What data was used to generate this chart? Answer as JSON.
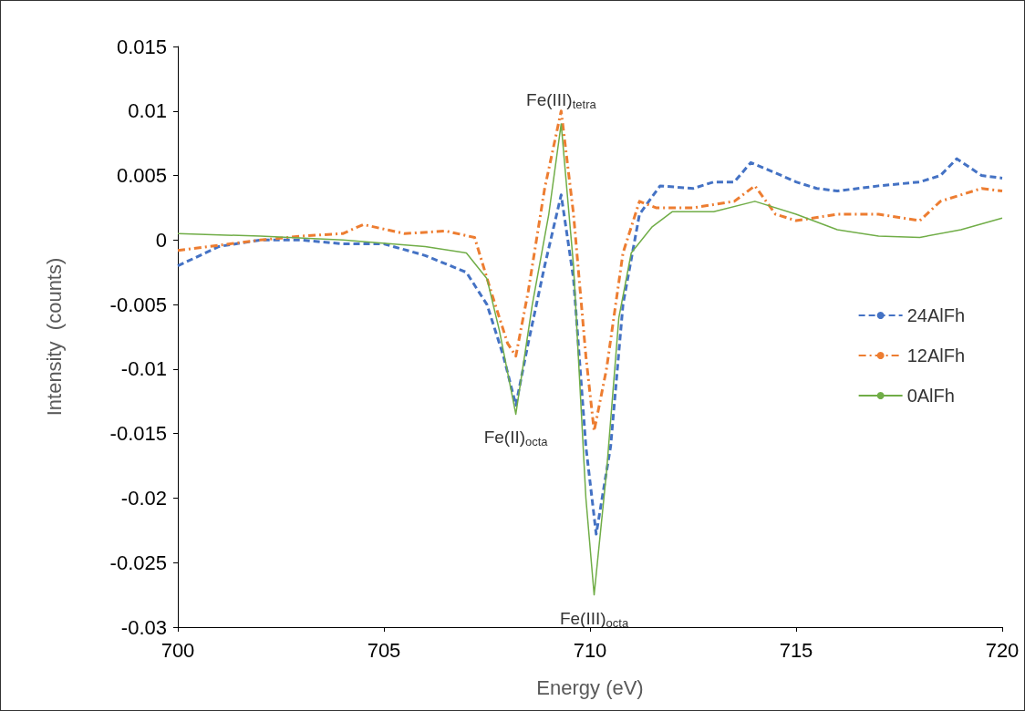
{
  "chart_data": {
    "type": "line",
    "xlabel": "Energy (eV)",
    "ylabel": "Intensity  (counts)",
    "xlim": [
      700,
      720
    ],
    "xticks": [
      700,
      705,
      710,
      715,
      720
    ],
    "ylim": [
      -0.03,
      0.015
    ],
    "yticks": [
      -0.03,
      -0.025,
      -0.02,
      -0.015,
      -0.01,
      -0.005,
      0,
      0.005,
      0.01,
      0.015
    ],
    "grid": false,
    "legend": "right",
    "marker": "none",
    "annotations": [
      {
        "text": "Fe(III)$_{tetra}$",
        "x": 709.3,
        "y": 0.009
      },
      {
        "text": "Fe(II)$_{octa}$",
        "x": 708.2,
        "y": -0.0135
      },
      {
        "text": "Fe(III)$_{octa}$",
        "x": 710.1,
        "y": -0.0275
      }
    ],
    "series": [
      {
        "name": "24AlFh",
        "color": "#4472c4",
        "line_style": "dashed",
        "x": [
          700,
          701,
          702,
          703,
          704,
          705,
          706,
          707,
          707.5,
          707.9,
          708.2,
          708.5,
          708.9,
          709.3,
          709.6,
          709.9,
          710.15,
          710.5,
          710.8,
          711.2,
          711.7,
          712.5,
          713,
          713.5,
          713.9,
          714.5,
          715,
          715.5,
          716,
          717,
          718,
          718.5,
          718.9,
          719.5,
          720
        ],
        "values": [
          -0.002,
          -0.0005,
          0,
          0,
          -0.0003,
          -0.0003,
          -0.0012,
          -0.0025,
          -0.005,
          -0.009,
          -0.0128,
          -0.008,
          -0.002,
          0.0035,
          -0.003,
          -0.016,
          -0.0228,
          -0.016,
          -0.005,
          0.002,
          0.0042,
          0.004,
          0.0045,
          0.0045,
          0.006,
          0.0052,
          0.0045,
          0.004,
          0.0038,
          0.0042,
          0.0045,
          0.005,
          0.0063,
          0.005,
          0.0048
        ]
      },
      {
        "name": "12AlFh",
        "color": "#ed7d31",
        "line_style": "dashdot",
        "x": [
          700,
          702,
          703,
          704,
          704.5,
          705.5,
          706.5,
          707.2,
          707.6,
          708,
          708.2,
          708.5,
          708.9,
          709.3,
          709.6,
          709.9,
          710.1,
          710.4,
          710.8,
          711.2,
          711.6,
          712.5,
          713.5,
          714,
          714.5,
          715,
          716,
          717,
          718,
          718.5,
          719.5,
          720
        ],
        "values": [
          -0.0008,
          0,
          0.0003,
          0.0005,
          0.0012,
          0.0005,
          0.0007,
          0.0002,
          -0.004,
          -0.008,
          -0.009,
          -0.004,
          0.004,
          0.01,
          0.002,
          -0.009,
          -0.0148,
          -0.01,
          -0.001,
          0.003,
          0.0025,
          0.0025,
          0.003,
          0.0042,
          0.002,
          0.0015,
          0.002,
          0.002,
          0.0015,
          0.003,
          0.004,
          0.0038
        ]
      },
      {
        "name": "0AlFh",
        "color": "#70ad47",
        "line_style": "solid",
        "x": [
          700,
          702,
          704,
          706,
          707,
          707.5,
          707.8,
          708.2,
          708.6,
          709,
          709.3,
          709.6,
          709.9,
          710.1,
          710.4,
          710.7,
          711,
          711.5,
          712,
          713,
          714,
          715,
          716,
          717,
          718,
          719,
          720
        ],
        "values": [
          0.0005,
          0.0003,
          0,
          -0.0005,
          -0.001,
          -0.003,
          -0.007,
          -0.0135,
          -0.005,
          0.002,
          0.009,
          -0.002,
          -0.02,
          -0.0275,
          -0.018,
          -0.006,
          -0.001,
          0.001,
          0.0022,
          0.0022,
          0.003,
          0.002,
          0.0008,
          0.0003,
          0.0002,
          0.0008,
          0.0017
        ]
      }
    ]
  }
}
